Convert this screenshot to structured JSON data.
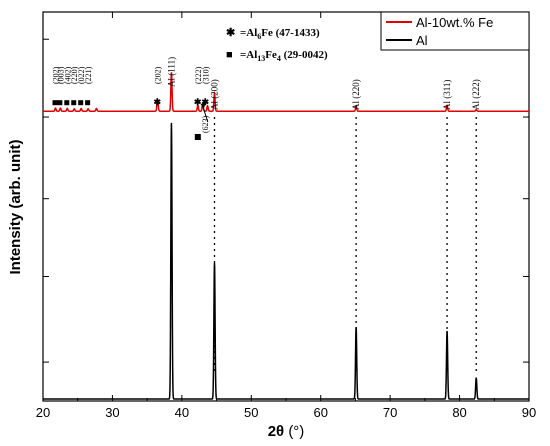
{
  "chart_data": {
    "type": "line",
    "xlabel_main": "2θ",
    "xlabel_unit": "(°)",
    "ylabel": "Intensity (arb. unit)",
    "xlim": [
      20,
      90
    ],
    "ylim": [
      0,
      100
    ],
    "xticks": [
      20,
      30,
      40,
      50,
      60,
      70,
      80,
      90
    ],
    "legend": {
      "placement": "top-right"
    },
    "series": [
      {
        "name": "Al-10wt.% Fe",
        "color": "#e00000",
        "baseline": 74.5,
        "peaks": [
          {
            "x": 21.8,
            "h": 0.8,
            "w": 0.12
          },
          {
            "x": 22.5,
            "h": 0.8,
            "w": 0.12
          },
          {
            "x": 23.5,
            "h": 0.7,
            "w": 0.12
          },
          {
            "x": 24.5,
            "h": 0.6,
            "w": 0.12
          },
          {
            "x": 25.5,
            "h": 0.7,
            "w": 0.12
          },
          {
            "x": 26.5,
            "h": 0.6,
            "w": 0.12
          },
          {
            "x": 27.7,
            "h": 0.7,
            "w": 0.12
          },
          {
            "x": 36.5,
            "h": 3.0,
            "w": 0.13
          },
          {
            "x": 38.5,
            "h": 10.0,
            "w": 0.12
          },
          {
            "x": 42.3,
            "h": 1.5,
            "w": 0.12
          },
          {
            "x": 43.0,
            "h": 2.0,
            "w": 0.12
          },
          {
            "x": 43.7,
            "h": 1.4,
            "w": 0.12
          },
          {
            "x": 44.7,
            "h": 4.5,
            "w": 0.12
          },
          {
            "x": 65.1,
            "h": 1.4,
            "w": 0.12
          },
          {
            "x": 78.2,
            "h": 1.5,
            "w": 0.12
          },
          {
            "x": 82.4,
            "h": 0.4,
            "w": 0.12
          }
        ]
      },
      {
        "name": "Al",
        "color": "#000000",
        "baseline": 0.5,
        "peaks": [
          {
            "x": 38.5,
            "h": 71.0,
            "w": 0.12
          },
          {
            "x": 44.7,
            "h": 35.0,
            "w": 0.12
          },
          {
            "x": 65.1,
            "h": 18.5,
            "w": 0.12
          },
          {
            "x": 78.2,
            "h": 17.5,
            "w": 0.12
          },
          {
            "x": 82.4,
            "h": 5.5,
            "w": 0.12
          }
        ]
      }
    ],
    "dotted_lines": [
      44.7,
      65.1,
      78.2,
      82.4
    ],
    "phase_key": [
      {
        "symbol": "✱",
        "prefix": "=Al",
        "sub": "6",
        "rest": "Fe (47-1433)"
      },
      {
        "symbol": "■",
        "prefix": "=Al",
        "sub": "13",
        "rest": "Fe",
        "sub2": "4",
        "tail": " (29-0042)"
      }
    ],
    "annotations": {
      "al_peaks": [
        {
          "x": 38.5,
          "label": "Al (111)"
        },
        {
          "x": 44.7,
          "label": "Al (200)"
        },
        {
          "x": 65.1,
          "label": "Al (220)"
        },
        {
          "x": 78.2,
          "label": "Al (311)"
        },
        {
          "x": 82.4,
          "label": "Al (222)"
        }
      ],
      "star_peaks": [
        {
          "x": 36.5,
          "label": "(202)"
        },
        {
          "x": 42.3,
          "label": "(222)"
        },
        {
          "x": 43.4,
          "label": "(310)"
        }
      ],
      "square_peaks": [
        {
          "x": 21.8,
          "label": "(202)"
        },
        {
          "x": 22.5,
          "label": "(003)"
        },
        {
          "x": 23.5,
          "label": "(402)"
        },
        {
          "x": 24.5,
          "label": "(220)"
        },
        {
          "x": 25.5,
          "label": "(022)"
        },
        {
          "x": 26.5,
          "label": "(221)"
        }
      ],
      "extra_square": {
        "label": "(623)",
        "x": 42.3
      }
    }
  }
}
